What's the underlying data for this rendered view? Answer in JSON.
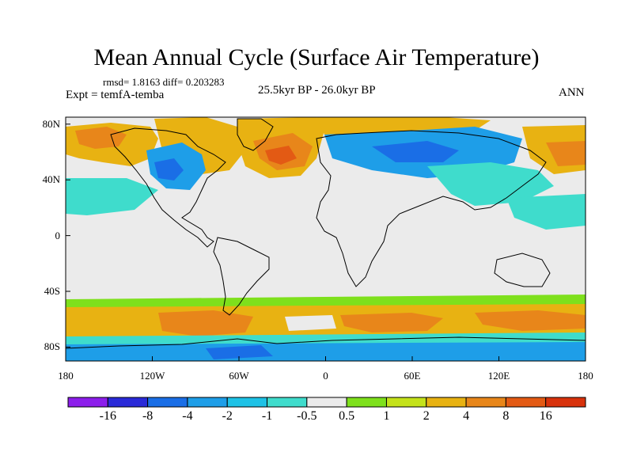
{
  "title": "Mean Annual Cycle (Surface Air Temperature)",
  "stats": "rmsd= 1.8163 diff= 0.203283",
  "experiment": "Expt = temfA-temba",
  "period": "25.5kyr BP - 26.0kyr BP",
  "season": "ANN",
  "lat_ticks": [
    "80N",
    "40N",
    "0",
    "40S",
    "80S"
  ],
  "lat_values": [
    80,
    40,
    0,
    -40,
    -80
  ],
  "lon_ticks": [
    "180",
    "120W",
    "60W",
    "0",
    "60E",
    "120E",
    "180"
  ],
  "lon_values": [
    -180,
    -120,
    -60,
    0,
    60,
    120,
    180
  ],
  "colorbar": {
    "labels": [
      "-16",
      "-8",
      "-4",
      "-2",
      "-1",
      "-0.5",
      "0.5",
      "1",
      "2",
      "4",
      "8",
      "16"
    ],
    "colors": [
      "#8c1eeb",
      "#2a2ad8",
      "#1a6ee6",
      "#1e9ee8",
      "#1ec2e6",
      "#3fdccc",
      "#ebebeb",
      "#7ee01c",
      "#c4e21a",
      "#e8b212",
      "#e8861a",
      "#e35a14",
      "#d8320c"
    ]
  },
  "palette": {
    "background": "#ebebeb",
    "cool_strong": "#1a6ee6",
    "cool": "#1e9ee8",
    "cool_light": "#3fdccc",
    "warm_light": "#c4e21a",
    "warm": "#e8b212",
    "warm_strong": "#e8861a",
    "warm_hot": "#e35a14",
    "green": "#7ee01c",
    "coast": "#000000"
  }
}
